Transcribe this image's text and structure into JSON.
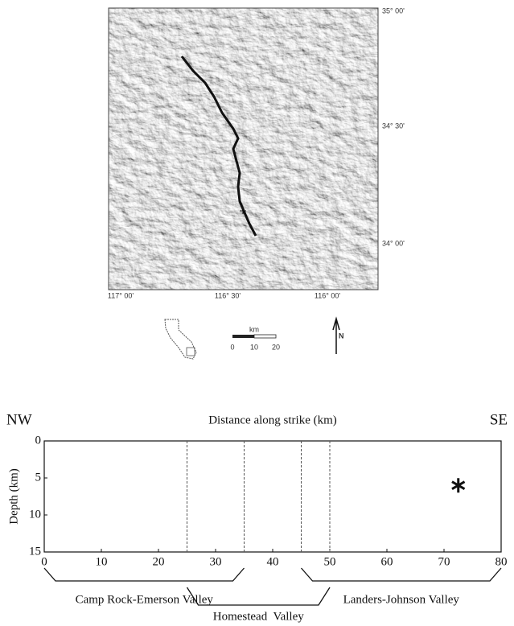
{
  "map": {
    "lat_labels": [
      "35° 00'",
      "34° 30'",
      "34° 00'"
    ],
    "lon_labels": [
      "117° 00'",
      "116° 30'",
      "116° 00'"
    ],
    "scale": {
      "unit": "km",
      "ticks": [
        "0",
        "10",
        "20"
      ]
    },
    "north": "N"
  },
  "chart_data": {
    "type": "scatter",
    "title": "Distance along strike (km)",
    "left_label": "NW",
    "right_label": "SE",
    "y_label": "Depth (km)",
    "xlim": [
      0,
      80
    ],
    "xticks": [
      0,
      10,
      20,
      30,
      40,
      50,
      60,
      70,
      80
    ],
    "ylim": [
      15,
      0
    ],
    "yticks": [
      0,
      5,
      10,
      15
    ],
    "x": [
      72.5
    ],
    "values": [
      6
    ],
    "segments": [
      {
        "name": "Camp Rock-Emerson Valley",
        "start": 0,
        "end": 35
      },
      {
        "name": "Homestead  Valley",
        "start": 25,
        "end": 50
      },
      {
        "name": "Landers-Johnson Valley",
        "start": 45,
        "end": 80
      }
    ]
  }
}
